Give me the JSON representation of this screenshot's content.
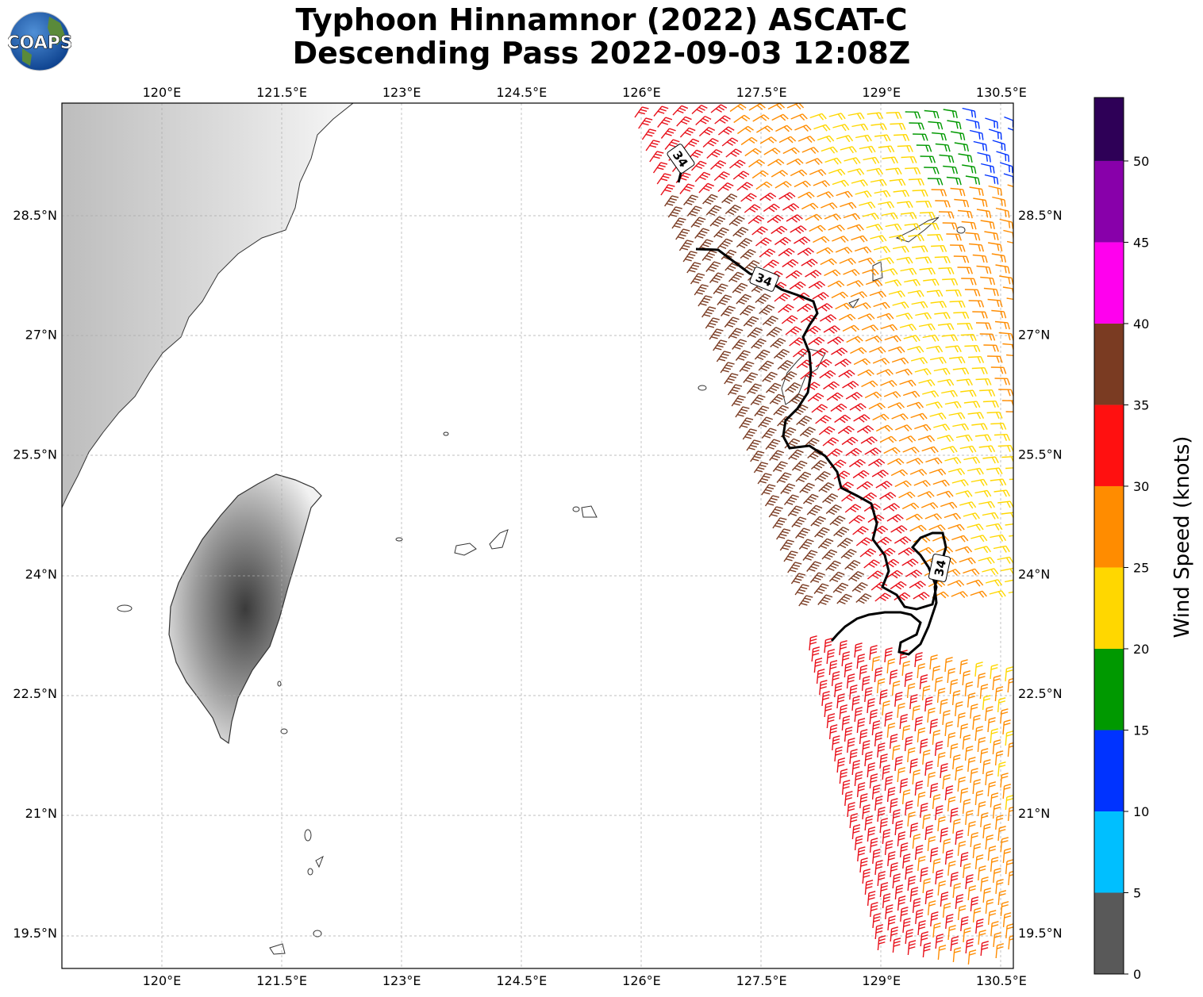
{
  "header": {
    "title_line1": "Typhoon Hinnamnor (2022) ASCAT-C",
    "title_line2": "Descending Pass 2022-09-03 12:08Z",
    "logo_text": "COAPS"
  },
  "axes": {
    "lon_labels": [
      "120°E",
      "121.5°E",
      "123°E",
      "124.5°E",
      "126°E",
      "127.5°E",
      "129°E",
      "130.5°E"
    ],
    "lat_labels": [
      "28.5°N",
      "27°N",
      "25.5°N",
      "24°N",
      "22.5°N",
      "21°N",
      "19.5°N"
    ],
    "lon_values": [
      120,
      121.5,
      123,
      124.5,
      126,
      127.5,
      129,
      130.5
    ],
    "lat_values": [
      28.5,
      27,
      25.5,
      24,
      22.5,
      21,
      19.5
    ],
    "lon_range": [
      118.75,
      130.65
    ],
    "lat_range": [
      19.05,
      29.9
    ]
  },
  "contour": {
    "label": "34",
    "level_kt": 34,
    "labels_shown": 3
  },
  "colorbar": {
    "label": "Wind Speed (knots)",
    "ticks": [
      "0",
      "5",
      "10",
      "15",
      "20",
      "25",
      "30",
      "35",
      "40",
      "45",
      "50"
    ],
    "bands": [
      {
        "range": "0-5",
        "color": "#595959"
      },
      {
        "range": "5-10",
        "color": "#00bfff"
      },
      {
        "range": "10-15",
        "color": "#0033ff"
      },
      {
        "range": "15-20",
        "color": "#009900"
      },
      {
        "range": "20-25",
        "color": "#ffd700"
      },
      {
        "range": "25-30",
        "color": "#ff8c00"
      },
      {
        "range": "30-35",
        "color": "#ff1010"
      },
      {
        "range": "35-40",
        "color": "#7a3b22"
      },
      {
        "range": "40-45",
        "color": "#ff00ee"
      },
      {
        "range": "45-50",
        "color": "#8800aa"
      },
      {
        "range": "50+",
        "color": "#2e0057"
      }
    ]
  },
  "wind_barbs": {
    "units": "knots",
    "swath_colors_by_speed": [
      "brown",
      "red",
      "orange",
      "yellow",
      "green",
      "blue"
    ]
  }
}
